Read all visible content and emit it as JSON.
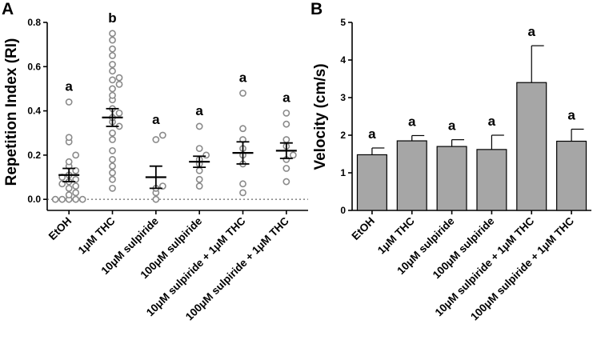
{
  "chart_data": [
    {
      "panel": "A",
      "type": "scatter",
      "ylabel": "Repetition Index (RI)",
      "ylim": [
        -0.05,
        0.8
      ],
      "yticks": [
        0.0,
        0.2,
        0.4,
        0.6,
        0.8
      ],
      "ytick_labels": [
        "0.0",
        "0.2",
        "0.4",
        "0.6",
        "0.8"
      ],
      "zero_line": true,
      "categories": [
        "EtOH",
        "1μM THC",
        "10μM sulpiride",
        "100μM sulpiride",
        "10μM sulpiride + 1μM THC",
        "100μM sulpiride + 1μM THC"
      ],
      "significance": [
        "a",
        "b",
        "a",
        "a",
        "a",
        "a"
      ],
      "means": [
        0.11,
        0.37,
        0.1,
        0.17,
        0.21,
        0.22
      ],
      "sem": [
        0.03,
        0.04,
        0.05,
        0.025,
        0.05,
        0.035
      ],
      "points": [
        [
          0.0,
          0.0,
          0.0,
          0.0,
          0.0,
          0.02,
          0.03,
          0.05,
          0.06,
          0.07,
          0.08,
          0.09,
          0.1,
          0.11,
          0.13,
          0.15,
          0.17,
          0.2,
          0.26,
          0.28,
          0.44
        ],
        [
          0.05,
          0.09,
          0.12,
          0.15,
          0.18,
          0.22,
          0.27,
          0.3,
          0.33,
          0.35,
          0.37,
          0.39,
          0.41,
          0.45,
          0.47,
          0.5,
          0.52,
          0.54,
          0.55,
          0.58,
          0.61,
          0.65,
          0.68,
          0.72,
          0.75
        ],
        [
          0.0,
          0.03,
          0.05,
          0.06,
          0.27,
          0.29
        ],
        [
          0.06,
          0.09,
          0.13,
          0.16,
          0.18,
          0.2,
          0.23,
          0.33
        ],
        [
          0.03,
          0.07,
          0.16,
          0.2,
          0.23,
          0.27,
          0.32,
          0.48
        ],
        [
          0.08,
          0.14,
          0.18,
          0.2,
          0.24,
          0.27,
          0.34,
          0.39
        ]
      ]
    },
    {
      "panel": "B",
      "type": "bar",
      "ylabel": "Velocity (cm/s)",
      "ylim": [
        0,
        5
      ],
      "yticks": [
        0,
        1,
        2,
        3,
        4,
        5
      ],
      "ytick_labels": [
        "0",
        "1",
        "2",
        "3",
        "4",
        "5"
      ],
      "categories": [
        "EtOH",
        "1μM THC",
        "10μM sulpiride",
        "100μM sulpiride",
        "10μM sulpiride + 1μM THC",
        "100μM sulpiride + 1μM THC"
      ],
      "significance": [
        "a",
        "a",
        "a",
        "a",
        "a",
        "a"
      ],
      "values": [
        1.48,
        1.85,
        1.7,
        1.62,
        3.4,
        1.84
      ],
      "errors": [
        0.18,
        0.14,
        0.18,
        0.38,
        0.98,
        0.32
      ]
    }
  ]
}
